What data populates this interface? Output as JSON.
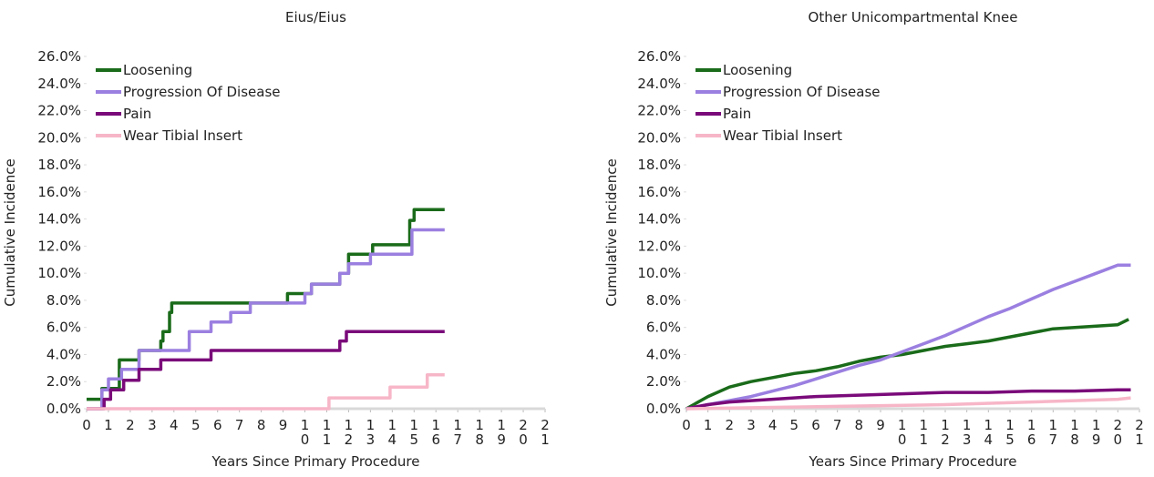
{
  "chart_data": [
    {
      "type": "line",
      "title": "Eius/Eius",
      "xlabel": "Years Since Primary Procedure",
      "ylabel": "Cumulative Incidence",
      "xlim": [
        0,
        21
      ],
      "xticks": [
        0,
        1,
        2,
        3,
        4,
        5,
        6,
        7,
        8,
        9,
        10,
        11,
        12,
        13,
        14,
        15,
        16,
        17,
        18,
        19,
        20,
        21
      ],
      "ylim": [
        0,
        26
      ],
      "yticks": [
        {
          "value": 0,
          "label": "0.0%"
        },
        {
          "value": 2,
          "label": "2.0%"
        },
        {
          "value": 4,
          "label": "4.0%"
        },
        {
          "value": 6,
          "label": "6.0%"
        },
        {
          "value": 8,
          "label": "8.0%"
        },
        {
          "value": 10,
          "label": "10.0%"
        },
        {
          "value": 12,
          "label": "12.0%"
        },
        {
          "value": 14,
          "label": "14.0%"
        },
        {
          "value": 16,
          "label": "16.0%"
        },
        {
          "value": 18,
          "label": "18.0%"
        },
        {
          "value": 20,
          "label": "20.0%"
        },
        {
          "value": 22,
          "label": "22.0%"
        },
        {
          "value": 24,
          "label": "24.0%"
        },
        {
          "value": 26,
          "label": "26.0%"
        }
      ],
      "legend": "upper left",
      "series": [
        {
          "name": "Loosening",
          "color": "#1a6b1a",
          "x": [
            0,
            0.7,
            0.7,
            1.5,
            1.5,
            2.4,
            2.4,
            3.4,
            3.4,
            3.5,
            3.5,
            3.8,
            3.8,
            3.9,
            3.9,
            9.2,
            9.2,
            10.3,
            10.3,
            11.6,
            11.6,
            12.0,
            12.0,
            13.1,
            13.1,
            14.8,
            14.8,
            15.0,
            15.0,
            16.4
          ],
          "values": [
            0.7,
            0.7,
            1.5,
            1.5,
            3.6,
            3.6,
            4.3,
            4.3,
            5.0,
            5.0,
            5.7,
            5.7,
            7.1,
            7.1,
            7.8,
            7.8,
            8.5,
            8.5,
            9.2,
            9.2,
            10.0,
            10.0,
            11.4,
            11.4,
            12.1,
            12.1,
            13.9,
            13.9,
            14.7,
            14.7
          ]
        },
        {
          "name": "Progression Of Disease",
          "color": "#9b7fe0",
          "x": [
            0,
            0.7,
            0.7,
            1.0,
            1.0,
            1.6,
            1.6,
            2.4,
            2.4,
            4.7,
            4.7,
            5.7,
            5.7,
            6.6,
            6.6,
            7.5,
            7.5,
            10.0,
            10.0,
            10.3,
            10.3,
            11.6,
            11.6,
            12.0,
            12.0,
            13.0,
            13.0,
            14.9,
            14.9,
            16.4
          ],
          "values": [
            0,
            0,
            1.4,
            1.4,
            2.2,
            2.2,
            2.9,
            2.9,
            4.3,
            4.3,
            5.7,
            5.7,
            6.4,
            6.4,
            7.1,
            7.1,
            7.8,
            7.8,
            8.5,
            8.5,
            9.2,
            9.2,
            10.0,
            10.0,
            10.7,
            10.7,
            11.4,
            11.4,
            13.2,
            13.2
          ]
        },
        {
          "name": "Pain",
          "color": "#7a0a7a",
          "x": [
            0,
            0.8,
            0.8,
            1.1,
            1.1,
            1.7,
            1.7,
            2.4,
            2.4,
            3.4,
            3.4,
            5.7,
            5.7,
            11.6,
            11.6,
            11.9,
            11.9,
            16.4
          ],
          "values": [
            0,
            0,
            0.7,
            0.7,
            1.4,
            1.4,
            2.1,
            2.1,
            2.9,
            2.9,
            3.6,
            3.6,
            4.3,
            4.3,
            5.0,
            5.0,
            5.7,
            5.7
          ]
        },
        {
          "name": "Wear Tibial Insert",
          "color": "#f7b6c8",
          "x": [
            0,
            11.1,
            11.1,
            13.9,
            13.9,
            15.6,
            15.6,
            16.4
          ],
          "values": [
            0,
            0,
            0.8,
            0.8,
            1.6,
            1.6,
            2.5,
            2.5
          ]
        }
      ]
    },
    {
      "type": "line",
      "title": "Other Unicompartmental Knee",
      "xlabel": "Years Since Primary Procedure",
      "ylabel": "Cumulative Incidence",
      "xlim": [
        0,
        21
      ],
      "xticks": [
        0,
        1,
        2,
        3,
        4,
        5,
        6,
        7,
        8,
        9,
        10,
        11,
        12,
        13,
        14,
        15,
        16,
        17,
        18,
        19,
        20,
        21
      ],
      "ylim": [
        0,
        26
      ],
      "yticks": [
        {
          "value": 0,
          "label": "0.0%"
        },
        {
          "value": 2,
          "label": "2.0%"
        },
        {
          "value": 4,
          "label": "4.0%"
        },
        {
          "value": 6,
          "label": "6.0%"
        },
        {
          "value": 8,
          "label": "8.0%"
        },
        {
          "value": 10,
          "label": "10.0%"
        },
        {
          "value": 12,
          "label": "12.0%"
        },
        {
          "value": 14,
          "label": "14.0%"
        },
        {
          "value": 16,
          "label": "16.0%"
        },
        {
          "value": 18,
          "label": "18.0%"
        },
        {
          "value": 20,
          "label": "20.0%"
        },
        {
          "value": 22,
          "label": "22.0%"
        },
        {
          "value": 24,
          "label": "24.0%"
        },
        {
          "value": 26,
          "label": "26.0%"
        }
      ],
      "legend": "upper left",
      "series": [
        {
          "name": "Loosening",
          "color": "#1a6b1a",
          "x": [
            0,
            1,
            2,
            3,
            4,
            5,
            6,
            7,
            8,
            9,
            10,
            11,
            12,
            13,
            14,
            15,
            16,
            17,
            18,
            19,
            20,
            20.5
          ],
          "values": [
            0,
            0.9,
            1.6,
            2.0,
            2.3,
            2.6,
            2.8,
            3.1,
            3.5,
            3.8,
            4.0,
            4.3,
            4.6,
            4.8,
            5.0,
            5.3,
            5.6,
            5.9,
            6.0,
            6.1,
            6.2,
            6.6
          ]
        },
        {
          "name": "Progression Of Disease",
          "color": "#9b7fe0",
          "x": [
            0,
            1,
            2,
            3,
            4,
            5,
            6,
            7,
            8,
            9,
            10,
            11,
            12,
            13,
            14,
            15,
            16,
            17,
            18,
            19,
            20,
            20.6
          ],
          "values": [
            0,
            0.3,
            0.6,
            0.9,
            1.3,
            1.7,
            2.2,
            2.7,
            3.2,
            3.6,
            4.2,
            4.8,
            5.4,
            6.1,
            6.8,
            7.4,
            8.1,
            8.8,
            9.4,
            10.0,
            10.6,
            10.6
          ]
        },
        {
          "name": "Pain",
          "color": "#7a0a7a",
          "x": [
            0,
            1,
            2,
            4,
            6,
            8,
            10,
            12,
            14,
            16,
            18,
            20,
            20.6
          ],
          "values": [
            0,
            0.3,
            0.5,
            0.7,
            0.9,
            1.0,
            1.1,
            1.2,
            1.2,
            1.3,
            1.3,
            1.4,
            1.4
          ]
        },
        {
          "name": "Wear Tibial Insert",
          "color": "#f7b6c8",
          "x": [
            0,
            4,
            8,
            12,
            16,
            20,
            20.6
          ],
          "values": [
            0,
            0.1,
            0.2,
            0.3,
            0.5,
            0.7,
            0.8
          ]
        }
      ]
    }
  ]
}
